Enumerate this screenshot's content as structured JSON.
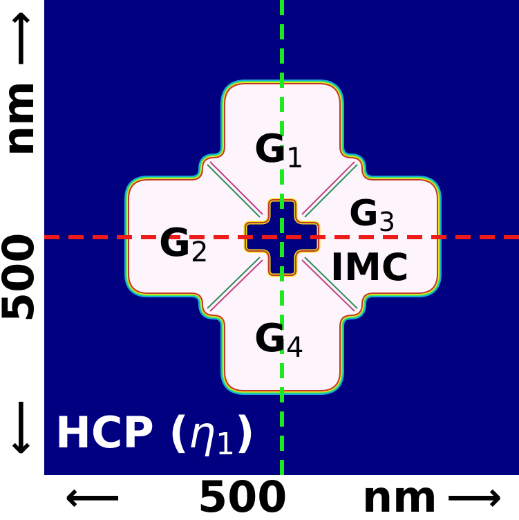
{
  "figure": {
    "phase_label": "HCP (η1)",
    "phase_label_parts": {
      "prefix": "HCP (",
      "symbol": "η",
      "subscript": "1",
      "suffix": ")"
    },
    "grains": [
      {
        "letter": "G",
        "subscript": "1"
      },
      {
        "letter": "G",
        "subscript": "2"
      },
      {
        "letter": "G",
        "subscript": "3"
      },
      {
        "letter": "G",
        "subscript": "4"
      }
    ],
    "imc_label": "IMC",
    "x_axis": {
      "arrow_left": "⟵",
      "value": "500",
      "unit": "nm",
      "arrow_right": "⟶"
    },
    "y_axis": {
      "arrow_down": "⟵",
      "value": "500",
      "unit": "nm",
      "arrow_up": "⟶"
    },
    "colors": {
      "background": "#000080",
      "grain_fill": "#fdf5fb",
      "vertical_dashed_line": "#1ee81e",
      "horizontal_dashed_line": "#ee1b1b",
      "label_dark": "#000000",
      "label_light": "#ffffff"
    }
  }
}
